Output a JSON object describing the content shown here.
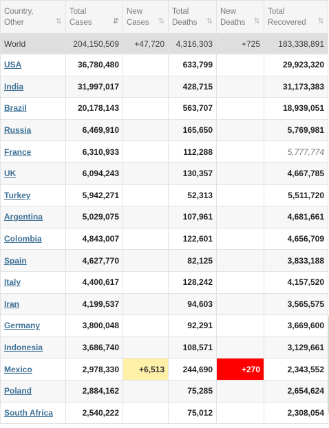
{
  "headers": [
    {
      "line1": "Country,",
      "line2": "Other",
      "sort_icon": "sort-both-icon",
      "active": false
    },
    {
      "line1": "Total",
      "line2": "Cases",
      "sort_icon": "sort-desc-icon",
      "active": true
    },
    {
      "line1": "New",
      "line2": "Cases",
      "sort_icon": "sort-both-icon",
      "active": false
    },
    {
      "line1": "Total",
      "line2": "Deaths",
      "sort_icon": "sort-both-icon",
      "active": false
    },
    {
      "line1": "New",
      "line2": "Deaths",
      "sort_icon": "sort-both-icon",
      "active": false
    },
    {
      "line1": "Total",
      "line2": "Recovered",
      "sort_icon": "sort-both-icon",
      "active": false
    }
  ],
  "world": {
    "country": "World",
    "total_cases": "204,150,509",
    "new_cases": "+47,720",
    "total_deaths": "4,316,303",
    "new_deaths": "+725",
    "total_recovered": "183,338,891"
  },
  "rows": [
    {
      "country": "USA",
      "total_cases": "36,780,480",
      "new_cases": "",
      "total_deaths": "633,799",
      "new_deaths": "",
      "total_recovered": "29,923,320"
    },
    {
      "country": "India",
      "total_cases": "31,997,017",
      "new_cases": "",
      "total_deaths": "428,715",
      "new_deaths": "",
      "total_recovered": "31,173,383"
    },
    {
      "country": "Brazil",
      "total_cases": "20,178,143",
      "new_cases": "",
      "total_deaths": "563,707",
      "new_deaths": "",
      "total_recovered": "18,939,051"
    },
    {
      "country": "Russia",
      "total_cases": "6,469,910",
      "new_cases": "",
      "total_deaths": "165,650",
      "new_deaths": "",
      "total_recovered": "5,769,981"
    },
    {
      "country": "France",
      "total_cases": "6,310,933",
      "new_cases": "",
      "total_deaths": "112,288",
      "new_deaths": "",
      "total_recovered": "5,777,774",
      "recovered_italic": true
    },
    {
      "country": "UK",
      "total_cases": "6,094,243",
      "new_cases": "",
      "total_deaths": "130,357",
      "new_deaths": "",
      "total_recovered": "4,667,785"
    },
    {
      "country": "Turkey",
      "total_cases": "5,942,271",
      "new_cases": "",
      "total_deaths": "52,313",
      "new_deaths": "",
      "total_recovered": "5,511,720"
    },
    {
      "country": "Argentina",
      "total_cases": "5,029,075",
      "new_cases": "",
      "total_deaths": "107,961",
      "new_deaths": "",
      "total_recovered": "4,681,661"
    },
    {
      "country": "Colombia",
      "total_cases": "4,843,007",
      "new_cases": "",
      "total_deaths": "122,601",
      "new_deaths": "",
      "total_recovered": "4,656,709"
    },
    {
      "country": "Spain",
      "total_cases": "4,627,770",
      "new_cases": "",
      "total_deaths": "82,125",
      "new_deaths": "",
      "total_recovered": "3,833,188"
    },
    {
      "country": "Italy",
      "total_cases": "4,400,617",
      "new_cases": "",
      "total_deaths": "128,242",
      "new_deaths": "",
      "total_recovered": "4,157,520"
    },
    {
      "country": "Iran",
      "total_cases": "4,199,537",
      "new_cases": "",
      "total_deaths": "94,603",
      "new_deaths": "",
      "total_recovered": "3,565,575"
    },
    {
      "country": "Germany",
      "total_cases": "3,800,048",
      "new_cases": "",
      "total_deaths": "92,291",
      "new_deaths": "",
      "total_recovered": "3,669,600"
    },
    {
      "country": "Indonesia",
      "total_cases": "3,686,740",
      "new_cases": "",
      "total_deaths": "108,571",
      "new_deaths": "",
      "total_recovered": "3,129,661"
    },
    {
      "country": "Mexico",
      "total_cases": "2,978,330",
      "new_cases": "+6,513",
      "total_deaths": "244,690",
      "new_deaths": "+270",
      "total_recovered": "2,343,552"
    },
    {
      "country": "Poland",
      "total_cases": "2,884,162",
      "new_cases": "",
      "total_deaths": "75,285",
      "new_deaths": "",
      "total_recovered": "2,654,624"
    },
    {
      "country": "South Africa",
      "total_cases": "2,540,222",
      "new_cases": "",
      "total_deaths": "75,012",
      "new_deaths": "",
      "total_recovered": "2,308,054"
    }
  ],
  "colors": {
    "link": "#3f7297",
    "header_bg": "#f5f5f5",
    "world_bg": "#dfdfdf",
    "new_cases_highlight": "#fff0a8",
    "new_deaths_highlight": "#ff0000"
  }
}
